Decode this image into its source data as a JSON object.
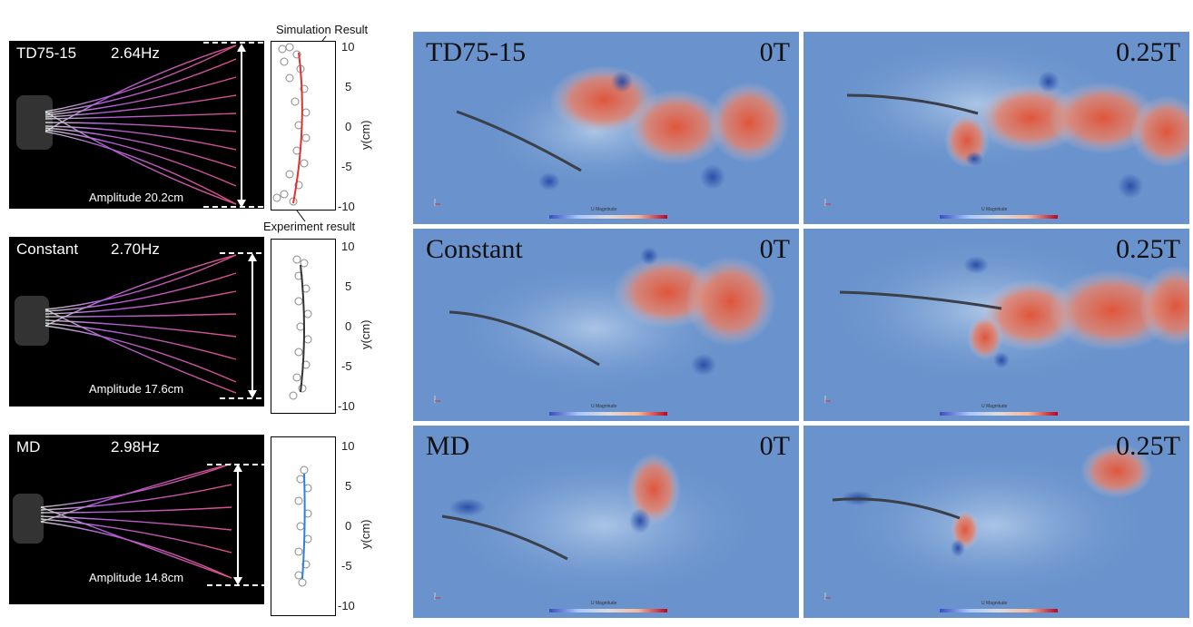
{
  "photos": [
    {
      "name": "TD75-15",
      "freq": "2.64Hz",
      "amplitude": "Amplitude 20.2cm"
    },
    {
      "name": "Constant",
      "freq": "2.70Hz",
      "amplitude": "Amplitude 17.6cm"
    },
    {
      "name": "MD",
      "freq": "2.98Hz",
      "amplitude": "Amplitude 14.8cm"
    }
  ],
  "plots": {
    "ylabel": "y(cm)",
    "ticks": [
      "10",
      "5",
      "0",
      "-5",
      "-10"
    ],
    "sim_annotation": "Simulation Result",
    "exp_annotation": "Experiment result",
    "line_colors": [
      "#e03030",
      "#333333",
      "#2f7fe0"
    ]
  },
  "cfd": {
    "rows": [
      "TD75-15",
      "Constant",
      "MD"
    ],
    "times": [
      "0T",
      "0.25T"
    ],
    "colorbar_title": "U Magnitude"
  }
}
